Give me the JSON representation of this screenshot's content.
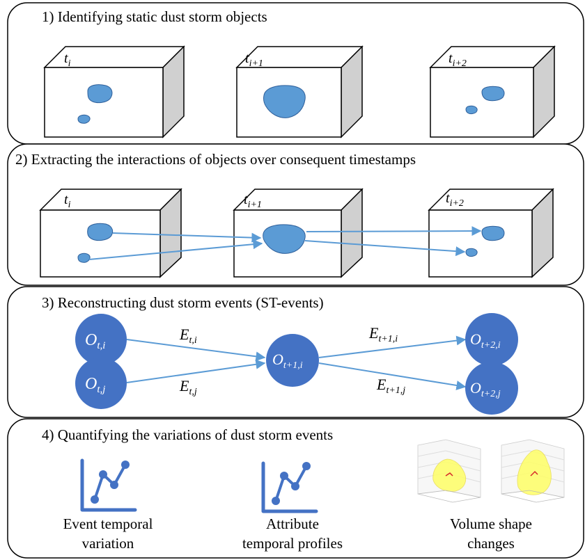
{
  "sections": [
    {
      "title": "1) Identifying static dust storm objects"
    },
    {
      "title": "2) Extracting the interactions of objects over consequent timestamps"
    },
    {
      "title": "3) Reconstructing dust storm events (ST-events)"
    },
    {
      "title": "4) Quantifying the variations of dust storm events"
    }
  ],
  "timestamps": {
    "base": "t",
    "subs": [
      "i",
      "i+1",
      "i+2"
    ]
  },
  "nodes": [
    {
      "base": "O",
      "sub": "t,i"
    },
    {
      "base": "O",
      "sub": "t,j"
    },
    {
      "base": "O",
      "sub": "t+1,i"
    },
    {
      "base": "O",
      "sub": "t+2,i"
    },
    {
      "base": "O",
      "sub": "t+2,j"
    }
  ],
  "edges": [
    {
      "base": "E",
      "sub": "t,i"
    },
    {
      "base": "E",
      "sub": "t,j"
    },
    {
      "base": "E",
      "sub": "t+1,i"
    },
    {
      "base": "E",
      "sub": "t+1,j"
    }
  ],
  "quantify": {
    "captions": [
      {
        "line1": "Event temporal",
        "line2": "variation"
      },
      {
        "line1": "Attribute",
        "line2": "temporal profiles"
      },
      {
        "line1": "Volume shape",
        "line2": "changes"
      }
    ],
    "chart_icon": "line-chart-icon",
    "volume_plot": "3d-volume-plot"
  },
  "colors": {
    "blob": "#5b9bd5",
    "blob_stroke": "#2e5f9a",
    "node": "#4472c4",
    "arrow": "#5b9bd5",
    "box_side": "#d0d0d0",
    "volume": "#ffff66"
  }
}
